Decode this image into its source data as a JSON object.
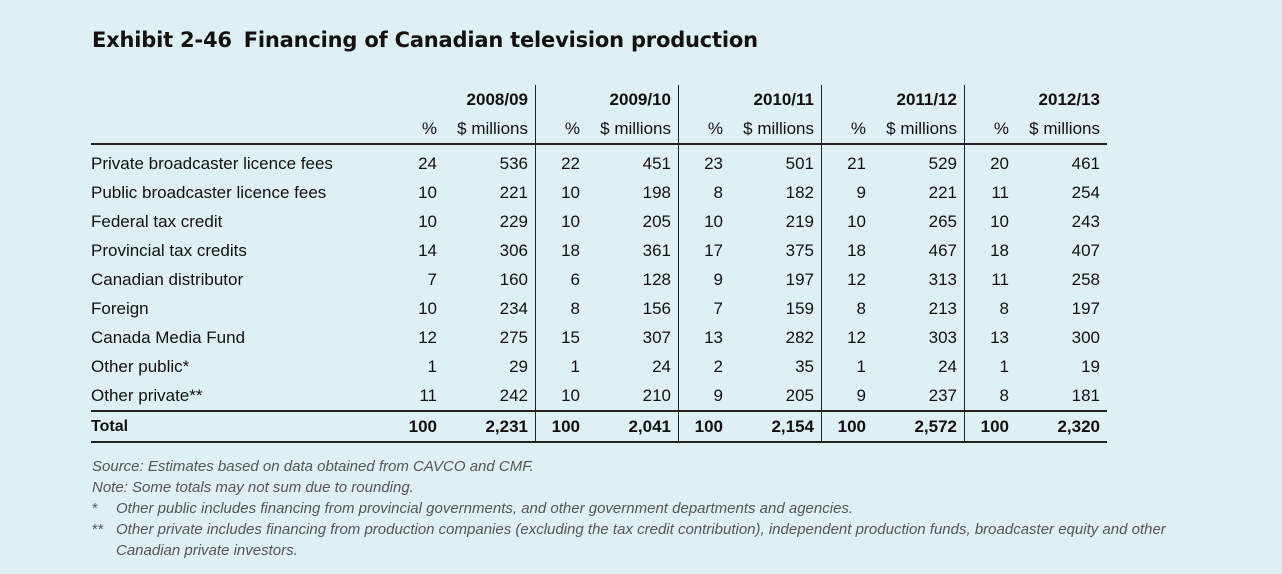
{
  "exhibit": {
    "number": "Exhibit 2-46",
    "title": "Financing of Canadian television production"
  },
  "table": {
    "years": [
      "2008/09",
      "2009/10",
      "2010/11",
      "2011/12",
      "2012/13"
    ],
    "pct_header": "%",
    "millions_header": "$ millions",
    "rows": [
      {
        "label": "Private broadcaster licence fees",
        "values": [
          "24",
          "536",
          "22",
          "451",
          "23",
          "501",
          "21",
          "529",
          "20",
          "461"
        ]
      },
      {
        "label": "Public broadcaster licence fees",
        "values": [
          "10",
          "221",
          "10",
          "198",
          "8",
          "182",
          "9",
          "221",
          "11",
          "254"
        ]
      },
      {
        "label": "Federal tax credit",
        "values": [
          "10",
          "229",
          "10",
          "205",
          "10",
          "219",
          "10",
          "265",
          "10",
          "243"
        ]
      },
      {
        "label": "Provincial tax credits",
        "values": [
          "14",
          "306",
          "18",
          "361",
          "17",
          "375",
          "18",
          "467",
          "18",
          "407"
        ]
      },
      {
        "label": "Canadian distributor",
        "values": [
          "7",
          "160",
          "6",
          "128",
          "9",
          "197",
          "12",
          "313",
          "11",
          "258"
        ]
      },
      {
        "label": "Foreign",
        "values": [
          "10",
          "234",
          "8",
          "156",
          "7",
          "159",
          "8",
          "213",
          "8",
          "197"
        ]
      },
      {
        "label": "Canada Media Fund",
        "values": [
          "12",
          "275",
          "15",
          "307",
          "13",
          "282",
          "12",
          "303",
          "13",
          "300"
        ]
      },
      {
        "label": "Other public*",
        "values": [
          "1",
          "29",
          "1",
          "24",
          "2",
          "35",
          "1",
          "24",
          "1",
          "19"
        ]
      },
      {
        "label": "Other private**",
        "values": [
          "11",
          "242",
          "10",
          "210",
          "9",
          "205",
          "9",
          "237",
          "8",
          "181"
        ]
      }
    ],
    "total": {
      "label": "Total",
      "values": [
        "100",
        "2,231",
        "100",
        "2,041",
        "100",
        "2,154",
        "100",
        "2,572",
        "100",
        "2,320"
      ]
    }
  },
  "notes": {
    "source": "Source: Estimates based on data obtained from CAVCO and CMF.",
    "note": "Note: Some totals may not sum due to rounding.",
    "fn1_mark": "*",
    "fn1": "Other public includes financing from provincial governments, and other government departments and agencies.",
    "fn2_mark": "**",
    "fn2_line1": "Other private includes financing from production companies (excluding the tax credit contribution), independent production funds, broadcaster equity and other",
    "fn2_line2": "Canadian private investors."
  }
}
